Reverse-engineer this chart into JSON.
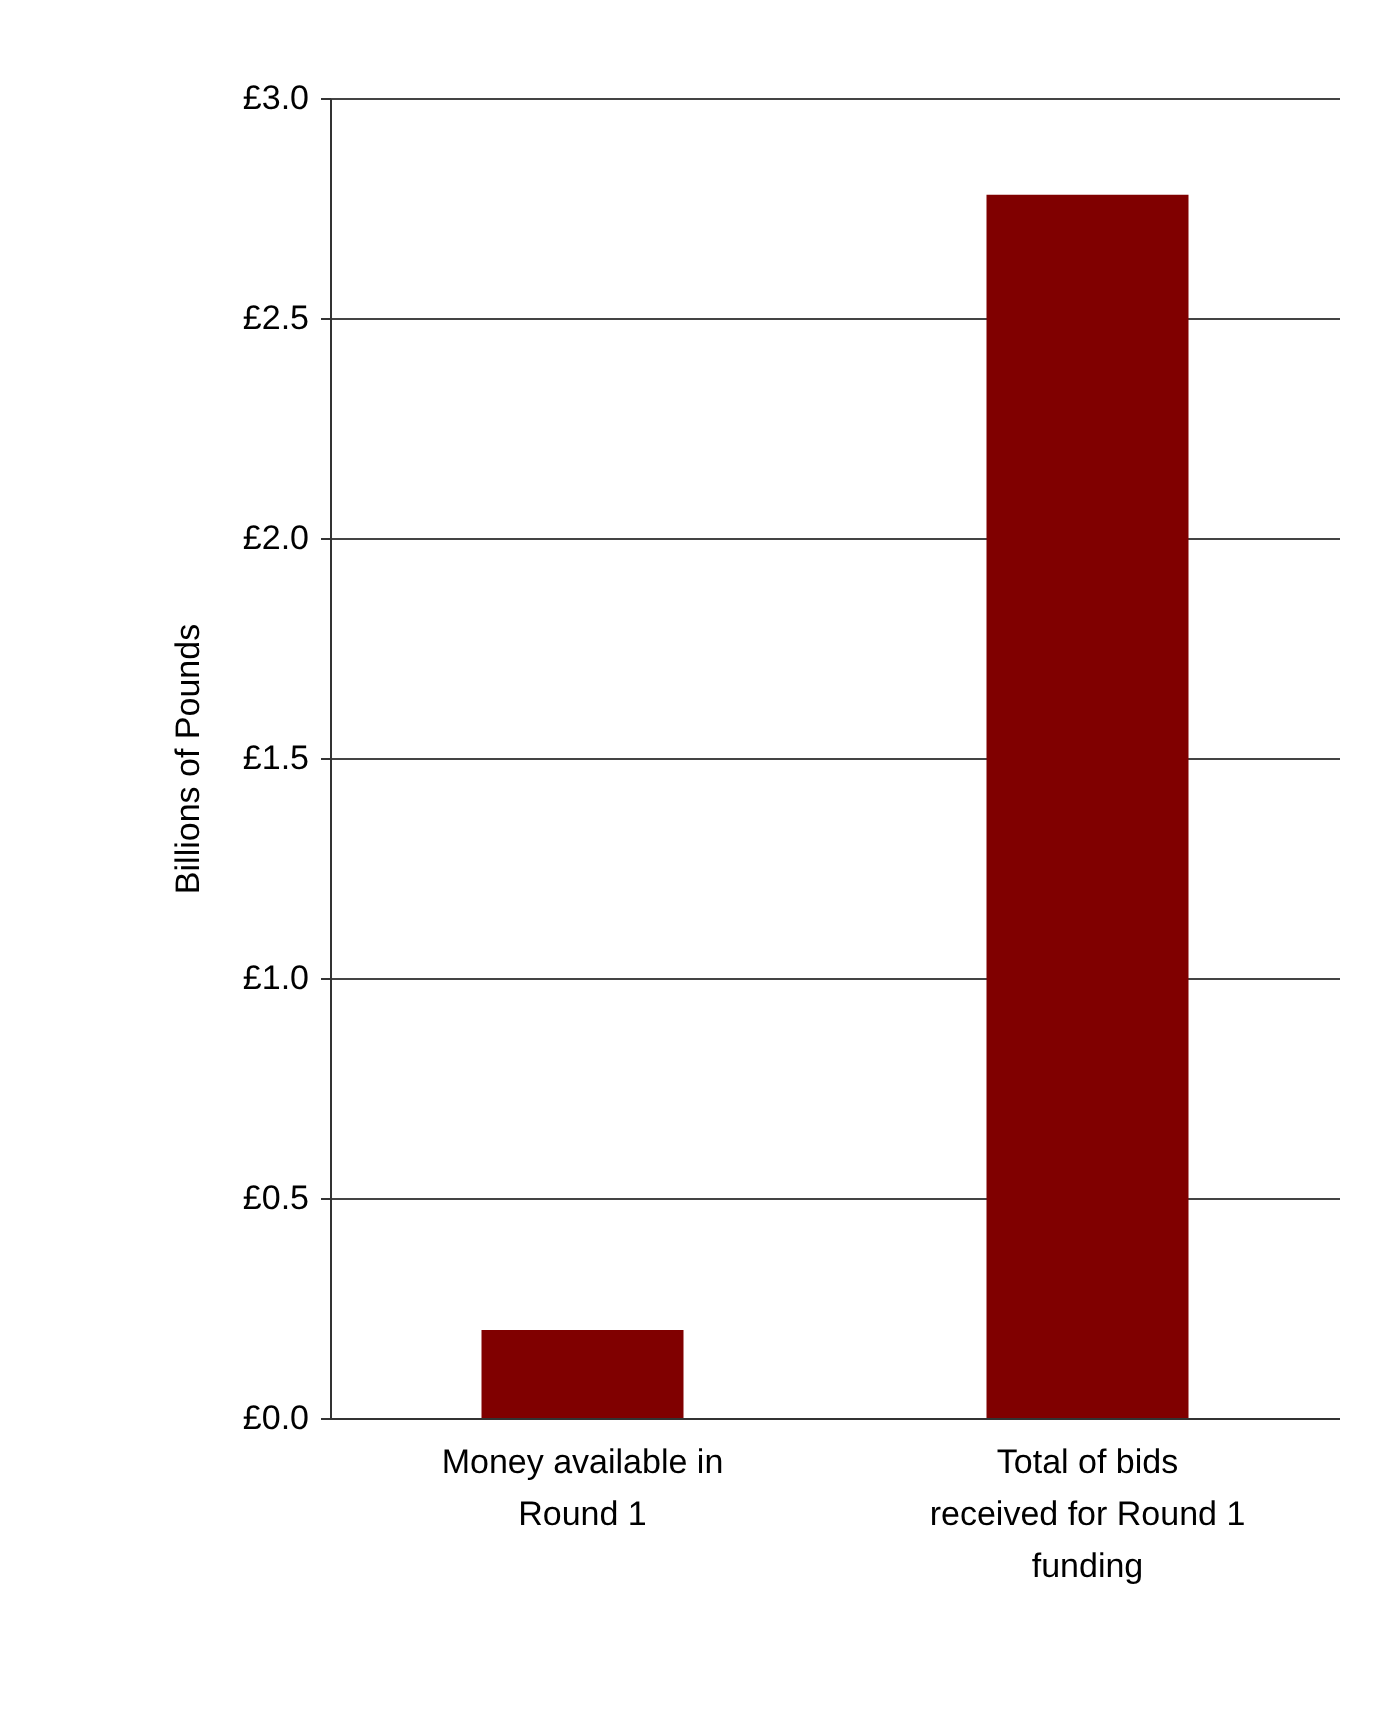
{
  "chart_data": {
    "type": "bar",
    "ylabel": "Billions of Pounds",
    "categories": [
      "Money available in Round 1",
      "Total of bids received for Round 1 funding"
    ],
    "values": [
      0.2,
      2.78
    ],
    "color": "#800000",
    "ylim": [
      0,
      3.0
    ],
    "yticks": [
      {
        "value": 0,
        "label": "£0.0"
      },
      {
        "value": 0.5,
        "label": "£0.5"
      },
      {
        "value": 1.0,
        "label": "£1.0"
      },
      {
        "value": 1.5,
        "label": "£1.5"
      },
      {
        "value": 2.0,
        "label": "£2.0"
      },
      {
        "value": 2.5,
        "label": "£2.5"
      },
      {
        "value": 3.0,
        "label": "£3.0"
      }
    ],
    "grid": "y"
  }
}
